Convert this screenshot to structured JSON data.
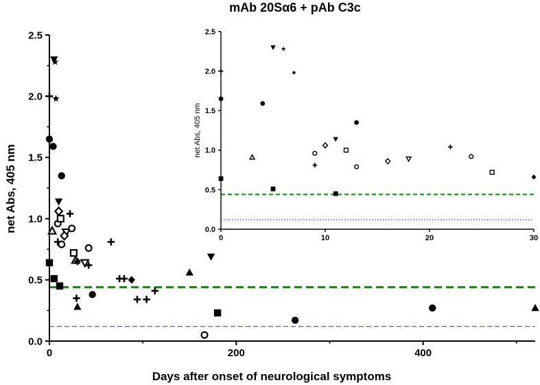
{
  "chart_data": {
    "type": "scatter",
    "title": "mAb 20Sα6 + pAb C3c",
    "xlabel": "Days after onset of neurological symptoms",
    "ylabel": "net Abs, 405 nm",
    "xlim": [
      0,
      520
    ],
    "ylim": [
      0,
      2.5
    ],
    "xticks": [
      "0",
      "200",
      "400"
    ],
    "yticks": [
      "0.0",
      "0.5",
      "1.0",
      "1.5",
      "2.0",
      "2.5"
    ],
    "reference_lines": [
      {
        "y": 0.44,
        "color": "#1a8a1a",
        "style": "dashed"
      },
      {
        "y": 0.12,
        "color": "#5555ee",
        "style": "dashed"
      }
    ],
    "points": [
      {
        "x": 0,
        "y": 1.65,
        "marker": "circle"
      },
      {
        "x": 4,
        "y": 1.59,
        "marker": "circle"
      },
      {
        "x": 13,
        "y": 1.35,
        "marker": "circle"
      },
      {
        "x": 46,
        "y": 0.38,
        "marker": "circle"
      },
      {
        "x": 263,
        "y": 0.17,
        "marker": "circle"
      },
      {
        "x": 410,
        "y": 0.27,
        "marker": "circle"
      },
      {
        "x": 0,
        "y": 0.64,
        "marker": "square"
      },
      {
        "x": 5,
        "y": 0.51,
        "marker": "square"
      },
      {
        "x": 11,
        "y": 0.45,
        "marker": "square"
      },
      {
        "x": 180,
        "y": 0.23,
        "marker": "square"
      },
      {
        "x": 3,
        "y": 0.9,
        "marker": "triangle-open"
      },
      {
        "x": 28,
        "y": 0.66,
        "marker": "triangle-open"
      },
      {
        "x": 30,
        "y": 0.28,
        "marker": "triangle"
      },
      {
        "x": 150,
        "y": 0.56,
        "marker": "triangle"
      },
      {
        "x": 520,
        "y": 0.27,
        "marker": "triangle"
      },
      {
        "x": 5,
        "y": 2.3,
        "marker": "triangle-down"
      },
      {
        "x": 10,
        "y": 1.14,
        "marker": "triangle-down"
      },
      {
        "x": 173,
        "y": 0.69,
        "marker": "triangle-down"
      },
      {
        "x": 18,
        "y": 0.89,
        "marker": "triangle-down-open"
      },
      {
        "x": 38,
        "y": 0.64,
        "marker": "triangle-down-open"
      },
      {
        "x": 0,
        "y": 2.0,
        "marker": "plus"
      },
      {
        "x": 9,
        "y": 0.81,
        "marker": "plus"
      },
      {
        "x": 22,
        "y": 1.04,
        "marker": "plus"
      },
      {
        "x": 29,
        "y": 0.35,
        "marker": "plus"
      },
      {
        "x": 42,
        "y": 0.62,
        "marker": "plus"
      },
      {
        "x": 66,
        "y": 0.81,
        "marker": "plus"
      },
      {
        "x": 75,
        "y": 0.51,
        "marker": "plus"
      },
      {
        "x": 80,
        "y": 0.51,
        "marker": "plus"
      },
      {
        "x": 94,
        "y": 0.34,
        "marker": "plus"
      },
      {
        "x": 104,
        "y": 0.34,
        "marker": "plus"
      },
      {
        "x": 113,
        "y": 0.41,
        "marker": "plus"
      },
      {
        "x": 6,
        "y": 2.28,
        "marker": "star"
      },
      {
        "x": 7,
        "y": 1.98,
        "marker": "star"
      },
      {
        "x": 9,
        "y": 0.96,
        "marker": "circle-open"
      },
      {
        "x": 13,
        "y": 0.79,
        "marker": "circle-open"
      },
      {
        "x": 24,
        "y": 0.92,
        "marker": "circle-open"
      },
      {
        "x": 42,
        "y": 0.76,
        "marker": "circle-open"
      },
      {
        "x": 166,
        "y": 0.05,
        "marker": "circle-open"
      },
      {
        "x": 12,
        "y": 1.0,
        "marker": "square-open"
      },
      {
        "x": 26,
        "y": 0.72,
        "marker": "square-open"
      },
      {
        "x": 10,
        "y": 1.06,
        "marker": "diamond-open"
      },
      {
        "x": 16,
        "y": 0.86,
        "marker": "diamond-open"
      },
      {
        "x": 30,
        "y": 0.65,
        "marker": "diamond"
      },
      {
        "x": 88,
        "y": 0.5,
        "marker": "diamond"
      }
    ],
    "inset": {
      "xlim": [
        0,
        30
      ],
      "ylim": [
        0,
        2.5
      ],
      "ylabel": "net Abs, 405 nm",
      "xticks": [
        "0",
        "10",
        "20",
        "30"
      ],
      "yticks": [
        "0.0",
        "0.5",
        "1.0",
        "1.5",
        "2.0",
        "2.5"
      ],
      "reference_lines": [
        {
          "y": 0.44,
          "color": "#1a8a1a",
          "style": "dashed"
        },
        {
          "y": 0.12,
          "color": "#5555ee",
          "style": "dotted"
        }
      ],
      "points": [
        {
          "x": 0,
          "y": 1.65,
          "marker": "circle"
        },
        {
          "x": 4,
          "y": 1.59,
          "marker": "circle"
        },
        {
          "x": 13,
          "y": 1.35,
          "marker": "circle"
        },
        {
          "x": 0,
          "y": 0.64,
          "marker": "square"
        },
        {
          "x": 5,
          "y": 0.51,
          "marker": "square"
        },
        {
          "x": 11,
          "y": 0.45,
          "marker": "square"
        },
        {
          "x": 3,
          "y": 0.91,
          "marker": "triangle-open"
        },
        {
          "x": 5,
          "y": 2.3,
          "marker": "triangle-down"
        },
        {
          "x": 11,
          "y": 1.14,
          "marker": "triangle-down"
        },
        {
          "x": 18,
          "y": 0.89,
          "marker": "triangle-down-open"
        },
        {
          "x": 0,
          "y": 2.0,
          "marker": "plus"
        },
        {
          "x": 9,
          "y": 0.81,
          "marker": "plus"
        },
        {
          "x": 22,
          "y": 1.04,
          "marker": "plus"
        },
        {
          "x": 6,
          "y": 2.28,
          "marker": "star"
        },
        {
          "x": 7,
          "y": 1.98,
          "marker": "star"
        },
        {
          "x": 9,
          "y": 0.96,
          "marker": "circle-open"
        },
        {
          "x": 13,
          "y": 0.79,
          "marker": "circle-open"
        },
        {
          "x": 24,
          "y": 0.92,
          "marker": "circle-open"
        },
        {
          "x": 12,
          "y": 1.0,
          "marker": "square-open"
        },
        {
          "x": 26,
          "y": 0.72,
          "marker": "square-open"
        },
        {
          "x": 10,
          "y": 1.06,
          "marker": "diamond-open"
        },
        {
          "x": 16,
          "y": 0.86,
          "marker": "diamond-open"
        },
        {
          "x": 30,
          "y": 0.66,
          "marker": "diamond"
        }
      ]
    }
  }
}
